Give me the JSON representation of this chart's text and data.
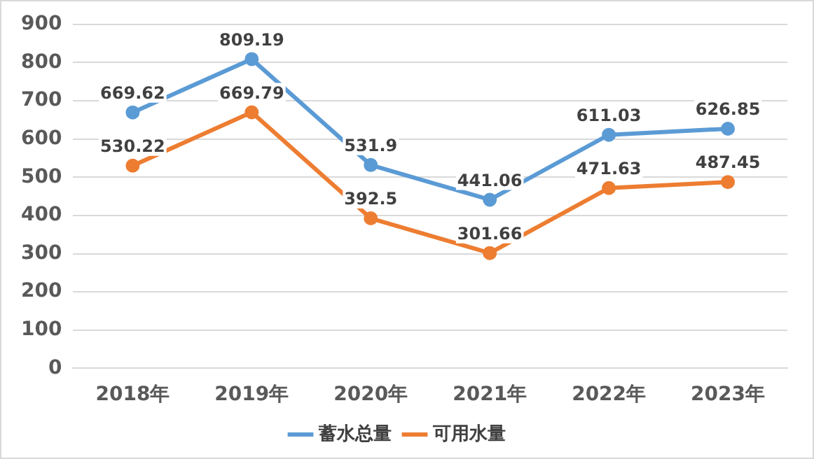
{
  "chart_data": {
    "type": "line",
    "categories": [
      "2018年",
      "2019年",
      "2020年",
      "2021年",
      "2022年",
      "2023年"
    ],
    "series": [
      {
        "name": "蓄水总量",
        "color": "#5b9bd5",
        "values": [
          669.62,
          809.19,
          531.9,
          441.06,
          611.03,
          626.85
        ]
      },
      {
        "name": "可用水量",
        "color": "#ed7d31",
        "values": [
          530.22,
          669.79,
          392.5,
          301.66,
          471.63,
          487.45
        ]
      }
    ],
    "ylim": [
      0,
      900
    ],
    "yticks": [
      0,
      100,
      200,
      300,
      400,
      500,
      600,
      700,
      800,
      900
    ],
    "grid": "y",
    "legend": "bottom",
    "marker": "circle",
    "line_style": "solid",
    "data_labels": true
  }
}
